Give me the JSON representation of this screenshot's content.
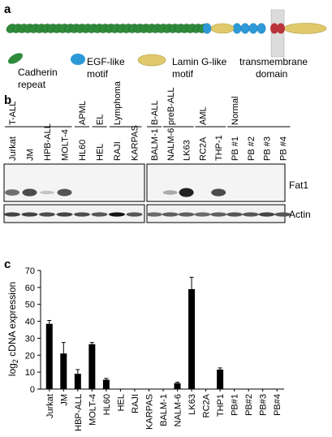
{
  "panels": {
    "a": "a",
    "b": "b",
    "c": "c"
  },
  "domain_legend": {
    "cadherin": [
      "Cadherin",
      "repeat"
    ],
    "egf": [
      "EGF-like",
      "motif"
    ],
    "lamin": [
      "Lamin G-like",
      "motif"
    ],
    "tm": [
      "transmembrane",
      "domain"
    ]
  },
  "domain_counts": {
    "cadherin": 34,
    "egf": 5,
    "lamin_g": 1,
    "transmembrane": 1
  },
  "blot": {
    "groups": [
      "T-ALL",
      "APML",
      "EL",
      "Lymphoma",
      "B-ALL",
      "preB-ALL",
      "AML",
      "Normal"
    ],
    "lanes": [
      "Jurkat",
      "JM",
      "HPB-ALL",
      "MOLT-4",
      "HL60",
      "HEL",
      "RAJI",
      "KARPAS",
      "BALM-1",
      "NALM-6",
      "LK63",
      "RC2A",
      "THP-1",
      "PB #1",
      "PB #2",
      "PB #3",
      "PB #4"
    ],
    "fat1_label": "Fat1",
    "actin_label": "Actin",
    "fat1_band_intensity": [
      0.55,
      0.75,
      0.05,
      0.7,
      0,
      0,
      0,
      0,
      0,
      0.2,
      1.0,
      0,
      0.75,
      0,
      0,
      0,
      0
    ],
    "actin_band_intensity": [
      0.7,
      0.7,
      0.65,
      0.7,
      0.65,
      0.6,
      0.95,
      0.6,
      0.5,
      0.55,
      0.55,
      0.5,
      0.55,
      0.6,
      0.6,
      0.7,
      0.6
    ]
  },
  "chart_data": {
    "type": "bar",
    "title": "",
    "xlabel": "",
    "ylabel": "log2 cDNA expression",
    "ylim": [
      0,
      70
    ],
    "yticks": [
      0,
      10,
      20,
      30,
      40,
      50,
      60,
      70
    ],
    "categories": [
      "Jurkat",
      "JM",
      "HBP-ALL",
      "MOLT-4",
      "HL60",
      "HEL",
      "RAJI",
      "KARPAS",
      "BALM-1",
      "NALM-6",
      "LK63",
      "RC2A",
      "THP1",
      "PB#1",
      "PB#2",
      "PB#3",
      "PB#4"
    ],
    "values": [
      38.5,
      21,
      9,
      26.5,
      5.5,
      0,
      0,
      0,
      0,
      3.5,
      59,
      0,
      11.5,
      0,
      0,
      0,
      0
    ],
    "errors": [
      2,
      6.5,
      2.5,
      1,
      0.8,
      0,
      0,
      0,
      0,
      0.6,
      7,
      0,
      1,
      0,
      0,
      0,
      0
    ],
    "grid": false
  }
}
